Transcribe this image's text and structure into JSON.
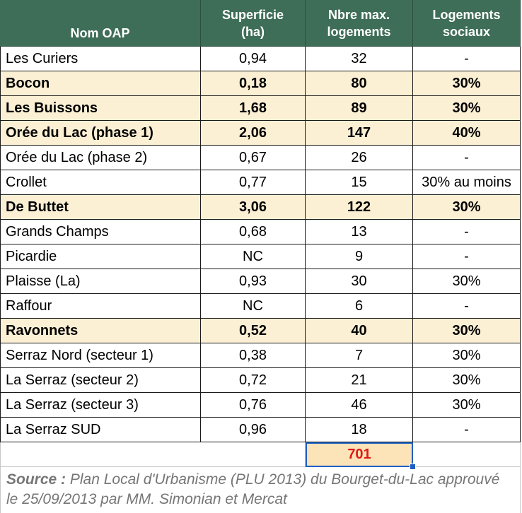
{
  "headers": {
    "col1": "Nom OAP",
    "col2_line1": "Superficie",
    "col2_line2": "(ha)",
    "col3_line1": "Nbre max.",
    "col3_line2": "logements",
    "col4_line1": "Logements",
    "col4_line2": "sociaux"
  },
  "rows": [
    {
      "name": "Les Curiers",
      "superficie": "0,94",
      "logements": "32",
      "sociaux": "-",
      "highlight": false
    },
    {
      "name": "Bocon",
      "superficie": "0,18",
      "logements": "80",
      "sociaux": "30%",
      "highlight": true
    },
    {
      "name": "Les Buissons",
      "superficie": "1,68",
      "logements": "89",
      "sociaux": "30%",
      "highlight": true
    },
    {
      "name": "Orée du Lac (phase 1)",
      "superficie": "2,06",
      "logements": "147",
      "sociaux": "40%",
      "highlight": true
    },
    {
      "name": "Orée du Lac (phase 2)",
      "superficie": "0,67",
      "logements": "26",
      "sociaux": "-",
      "highlight": false
    },
    {
      "name": "Crollet",
      "superficie": "0,77",
      "logements": "15",
      "sociaux": "30% au moins",
      "highlight": false
    },
    {
      "name": "De Buttet",
      "superficie": "3,06",
      "logements": "122",
      "sociaux": "30%",
      "highlight": true
    },
    {
      "name": "Grands Champs",
      "superficie": "0,68",
      "logements": "13",
      "sociaux": "-",
      "highlight": false
    },
    {
      "name": "Picardie",
      "superficie": "NC",
      "logements": "9",
      "sociaux": "-",
      "highlight": false
    },
    {
      "name": "Plaisse (La)",
      "superficie": "0,93",
      "logements": "30",
      "sociaux": "30%",
      "highlight": false
    },
    {
      "name": "Raffour",
      "superficie": "NC",
      "logements": "6",
      "sociaux": "-",
      "highlight": false
    },
    {
      "name": "Ravonnets",
      "superficie": "0,52",
      "logements": "40",
      "sociaux": "30%",
      "highlight": true
    },
    {
      "name": "Serraz Nord (secteur 1)",
      "superficie": "0,38",
      "logements": "7",
      "sociaux": "30%",
      "highlight": false
    },
    {
      "name": "La Serraz (secteur 2)",
      "superficie": "0,72",
      "logements": "21",
      "sociaux": "30%",
      "highlight": false
    },
    {
      "name": "La Serraz (secteur 3)",
      "superficie": "0,76",
      "logements": "46",
      "sociaux": "30%",
      "highlight": false
    },
    {
      "name": "La Serraz SUD",
      "superficie": "0,96",
      "logements": "18",
      "sociaux": "-",
      "highlight": false
    }
  ],
  "total": "701",
  "source": {
    "label": "Source :",
    "text": "Plan Local d'Urbanisme (PLU 2013) du Bourget-du-Lac approuvé le 25/09/2013 par MM. Simonian et Mercat"
  },
  "colors": {
    "header_bg": "#3f6e58",
    "highlight_bg": "#fcf0d4",
    "total_bg": "#fce4b8",
    "total_text": "#e01818",
    "selection": "#1f5fc4"
  }
}
